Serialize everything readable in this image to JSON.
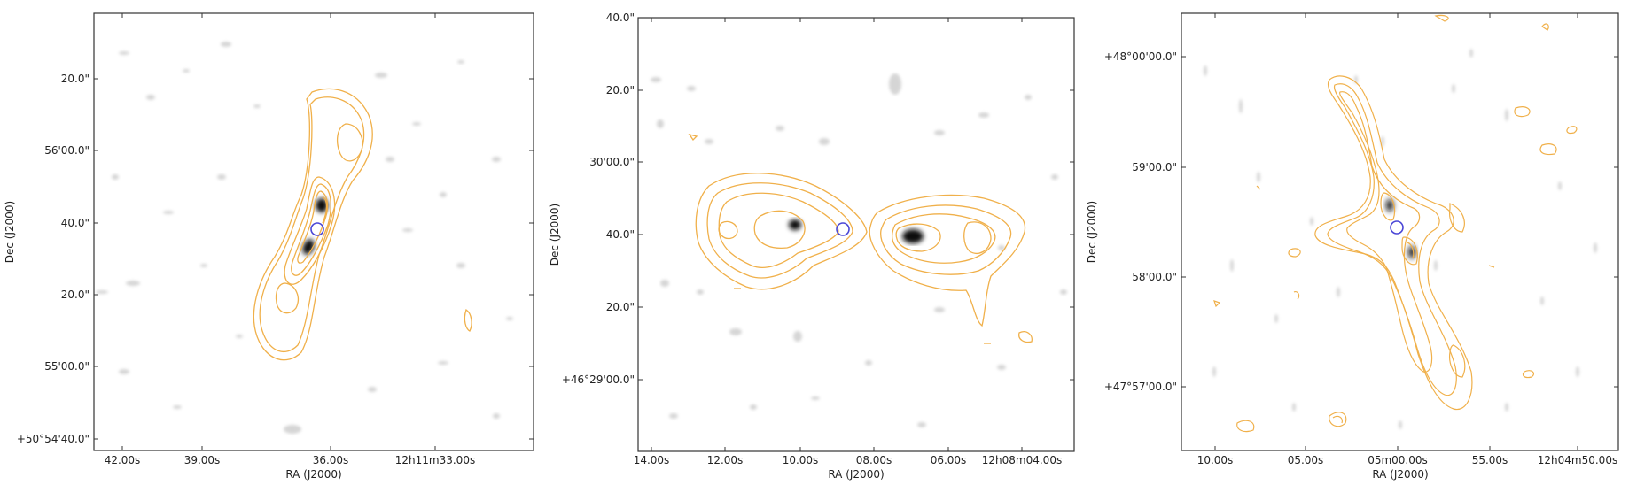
{
  "colors": {
    "contour": "#f0b04a",
    "marker": "#4a46d6",
    "background": "#ffffff",
    "frame": "#333333",
    "noise": "#8a8a8a",
    "source": "#111111"
  },
  "panels": [
    {
      "xlabel": "RA (J2000)",
      "ylabel": "Dec (J2000)",
      "xticks": [
        "42.00s",
        "39.00s",
        "36.00s",
        "12h11m33.00s"
      ],
      "yticks": [
        "20.0\"",
        "56'00.0\"",
        "40.0\"",
        "20.0\"",
        "55'00.0\"",
        "+50°54'40.0\""
      ]
    },
    {
      "xlabel": "RA (J2000)",
      "ylabel": "Dec (J2000)",
      "xticks": [
        "14.00s",
        "12.00s",
        "10.00s",
        "08.00s",
        "06.00s",
        "12h08m04.00s"
      ],
      "yticks": [
        "40.0\"",
        "20.0\"",
        "30'00.0\"",
        "40.0\"",
        "20.0\"",
        "+46°29'00.0\""
      ]
    },
    {
      "xlabel": "RA (J2000)",
      "ylabel": "Dec (J2000)",
      "xticks": [
        "10.00s",
        "05.00s",
        "05m00.00s",
        "55.00s",
        "12h04m50.00s"
      ],
      "yticks": [
        "+48°00'00.0\"",
        "59'00.0\"",
        "58'00.0\"",
        "+47°57'00.0\""
      ]
    }
  ]
}
